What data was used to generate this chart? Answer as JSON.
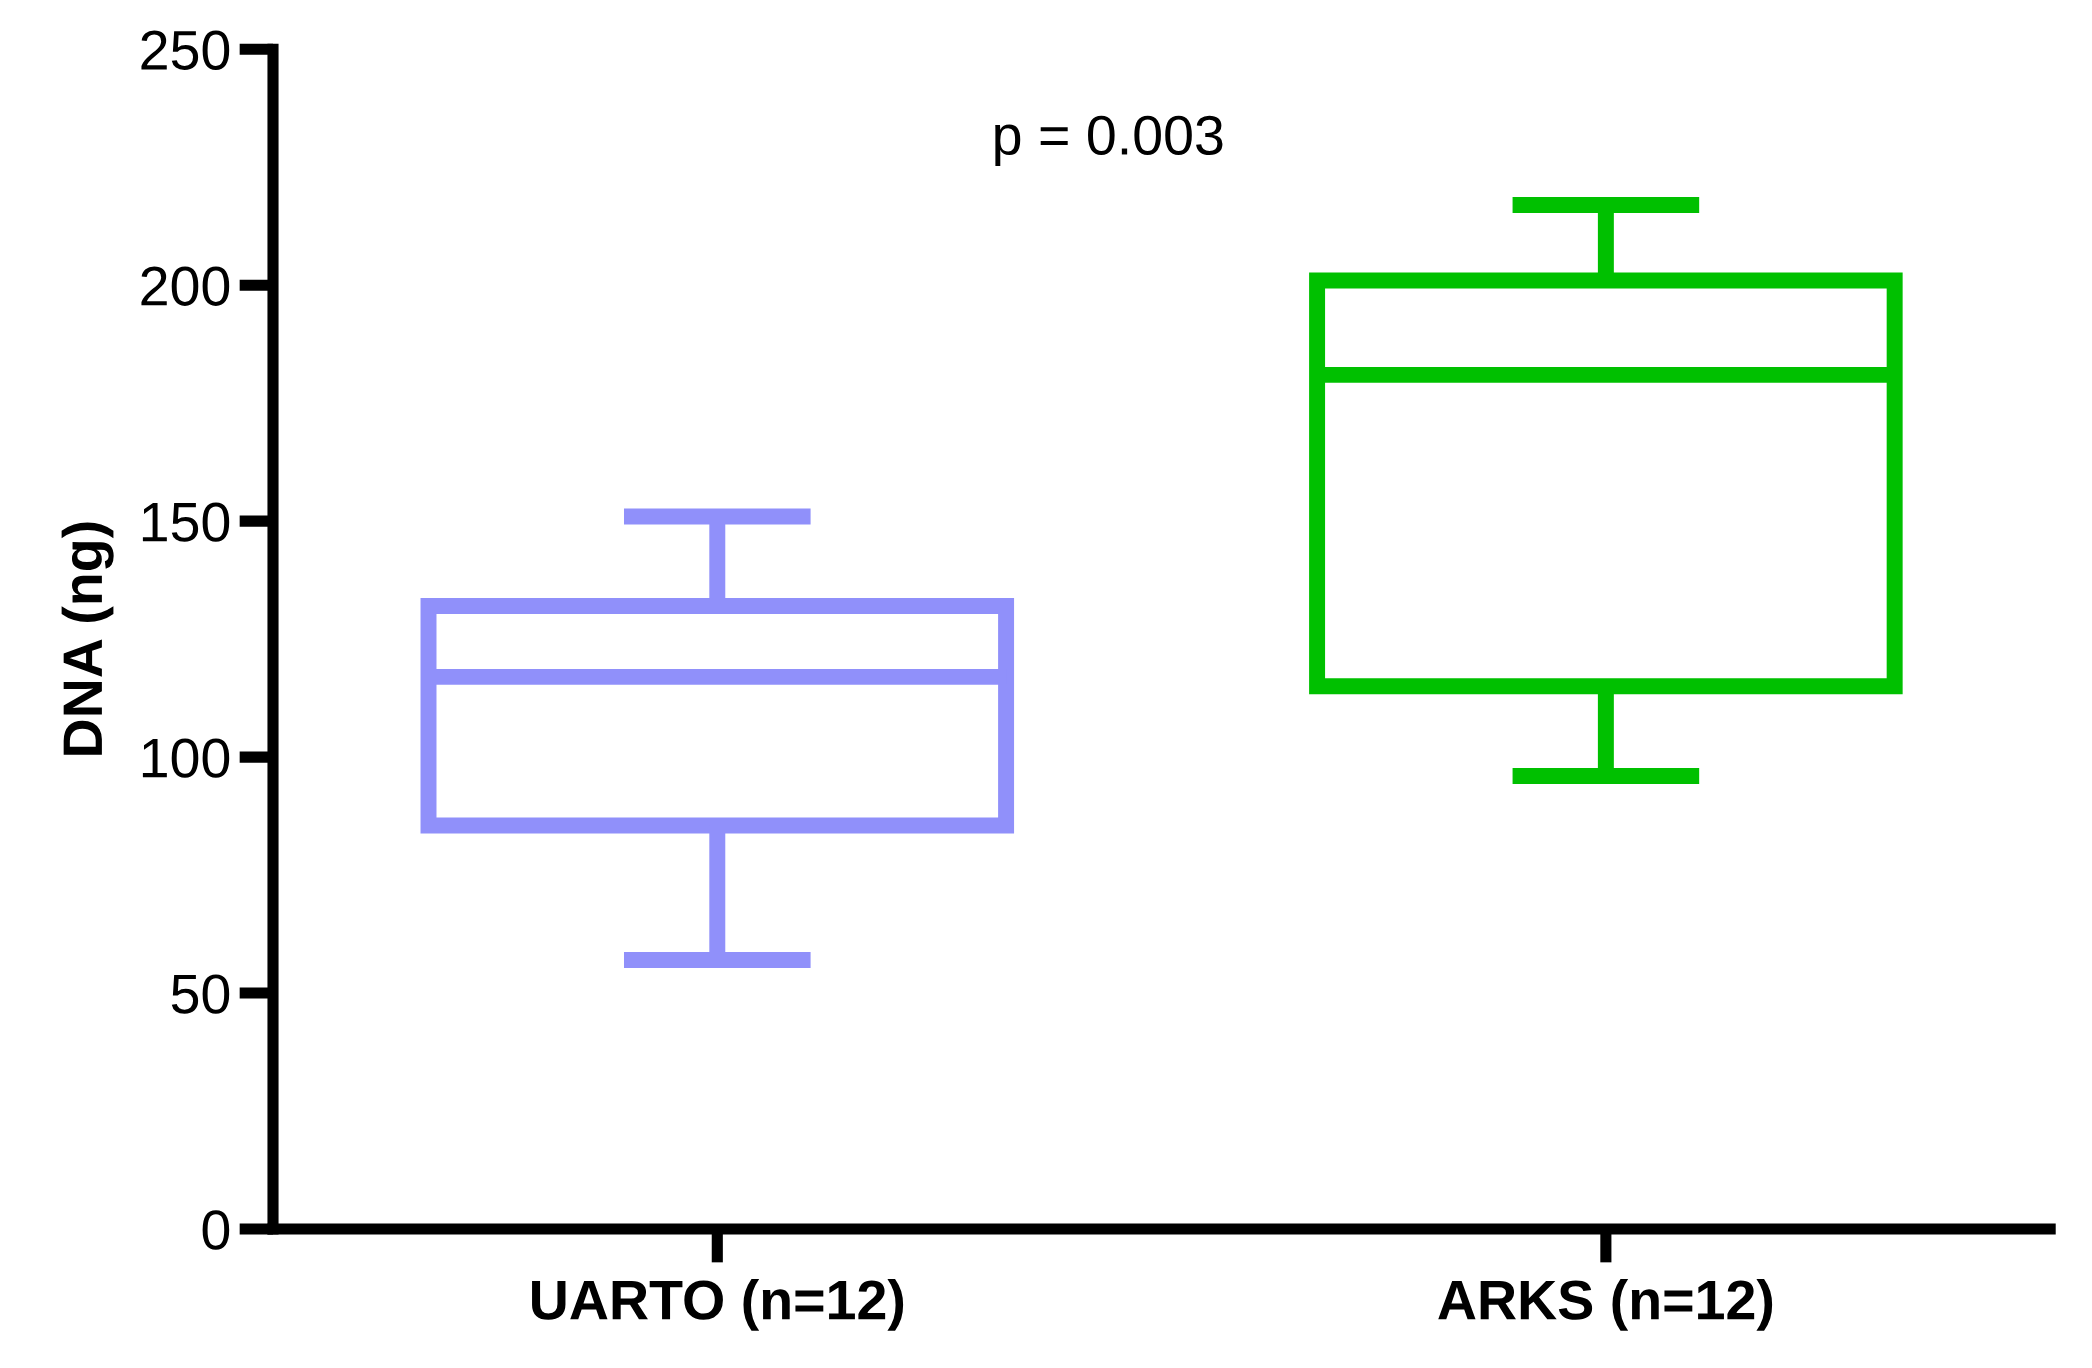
{
  "chart_data": {
    "type": "box",
    "categories": [
      "UARTO (n=12)",
      "ARKS (n=12)"
    ],
    "ylabel": "DNA (ng)",
    "colors": [
      "#9090fa",
      "#00c000"
    ],
    "boxes": [
      {
        "low": 57,
        "q1": 85.5,
        "median": 117,
        "q3": 132,
        "high": 151
      },
      {
        "low": 96,
        "q1": 115,
        "median": 181,
        "q3": 201,
        "high": 217
      }
    ],
    "ylim": [
      0,
      250
    ],
    "yticks": [
      0,
      50,
      100,
      150,
      200,
      250
    ],
    "annotations": [
      "p = 0.003"
    ]
  }
}
